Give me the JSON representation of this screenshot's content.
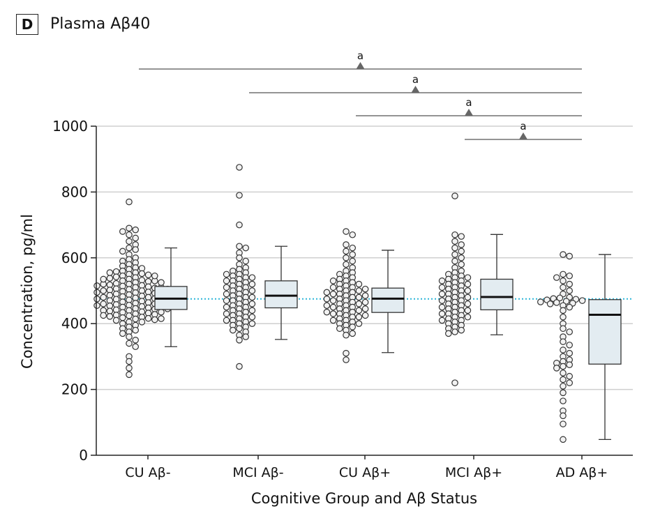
{
  "panel": {
    "label": "D",
    "title": "Plasma Aβ40"
  },
  "chart_data": {
    "type": "box",
    "xlabel": "Cognitive Group and Aβ Status",
    "ylabel": "Concentration, pg/ml",
    "ylim": [
      0,
      1000
    ],
    "yticks": [
      0,
      200,
      400,
      600,
      800,
      1000
    ],
    "grid": true,
    "reference_line": 475,
    "reference_color": "#2bb5d8",
    "box_fill": "#e3ecf1",
    "groups": [
      {
        "label": "CU Aβ-",
        "box": {
          "whisker_low": 330,
          "q1": 443,
          "median": 476,
          "q3": 513,
          "whisker_high": 630
        },
        "points": [
          770,
          690,
          685,
          680,
          670,
          660,
          650,
          640,
          630,
          625,
          620,
          610,
          600,
          595,
          590,
          585,
          580,
          575,
          570,
          568,
          565,
          560,
          558,
          555,
          552,
          550,
          548,
          545,
          542,
          540,
          538,
          535,
          532,
          530,
          528,
          525,
          522,
          520,
          518,
          516,
          514,
          512,
          510,
          508,
          506,
          504,
          502,
          500,
          498,
          496,
          494,
          492,
          490,
          488,
          486,
          484,
          482,
          480,
          478,
          476,
          474,
          472,
          470,
          468,
          466,
          464,
          462,
          460,
          458,
          456,
          454,
          452,
          450,
          448,
          446,
          444,
          442,
          440,
          438,
          436,
          434,
          432,
          430,
          428,
          426,
          424,
          422,
          420,
          418,
          416,
          414,
          412,
          410,
          405,
          400,
          395,
          390,
          385,
          380,
          375,
          370,
          360,
          350,
          340,
          330,
          300,
          285,
          265,
          245,
          480,
          470,
          460,
          490,
          500,
          510,
          520,
          530,
          440,
          450,
          455,
          465,
          475,
          485,
          495,
          505,
          515,
          525,
          535,
          545,
          555,
          445,
          435,
          425,
          415,
          405
        ]
      },
      {
        "label": "MCI Aβ-",
        "box": {
          "whisker_low": 352,
          "q1": 448,
          "median": 485,
          "q3": 530,
          "whisker_high": 635
        },
        "points": [
          875,
          790,
          700,
          635,
          630,
          615,
          600,
          590,
          580,
          570,
          565,
          560,
          555,
          550,
          545,
          540,
          535,
          530,
          525,
          520,
          515,
          510,
          505,
          500,
          495,
          490,
          485,
          480,
          475,
          470,
          465,
          460,
          455,
          450,
          445,
          440,
          435,
          430,
          425,
          420,
          415,
          410,
          405,
          400,
          395,
          390,
          385,
          380,
          375,
          365,
          360,
          350,
          270,
          500,
          490,
          480,
          470,
          460,
          450,
          510,
          520,
          530,
          540,
          550,
          440,
          430,
          420,
          410,
          400
        ]
      },
      {
        "label": "CU Aβ+",
        "box": {
          "whisker_low": 312,
          "q1": 434,
          "median": 476,
          "q3": 508,
          "whisker_high": 623
        },
        "points": [
          680,
          670,
          640,
          630,
          620,
          610,
          600,
          590,
          580,
          570,
          560,
          555,
          550,
          545,
          540,
          535,
          530,
          525,
          520,
          515,
          510,
          505,
          500,
          495,
          490,
          485,
          480,
          475,
          470,
          465,
          460,
          455,
          450,
          445,
          440,
          435,
          430,
          425,
          420,
          415,
          410,
          405,
          400,
          395,
          390,
          385,
          380,
          370,
          365,
          310,
          290,
          500,
          490,
          480,
          470,
          460,
          450,
          510,
          520,
          530,
          440,
          430,
          420,
          410,
          400,
          505,
          495,
          485,
          475,
          465,
          455,
          445,
          435,
          425
        ]
      },
      {
        "label": "MCI Aβ+",
        "box": {
          "whisker_low": 366,
          "q1": 442,
          "median": 481,
          "q3": 535,
          "whisker_high": 671
        },
        "points": [
          788,
          670,
          665,
          650,
          640,
          630,
          620,
          610,
          600,
          590,
          580,
          570,
          560,
          555,
          550,
          545,
          540,
          535,
          530,
          525,
          520,
          515,
          510,
          505,
          500,
          495,
          490,
          485,
          480,
          475,
          470,
          465,
          460,
          455,
          450,
          445,
          440,
          435,
          430,
          425,
          420,
          415,
          410,
          405,
          400,
          395,
          390,
          385,
          380,
          375,
          370,
          220,
          500,
          490,
          480,
          470,
          460,
          450,
          510,
          520,
          530,
          540,
          440,
          430,
          420,
          410
        ]
      },
      {
        "label": "AD Aβ+",
        "box": {
          "whisker_low": 48,
          "q1": 277,
          "median": 427,
          "q3": 473,
          "whisker_high": 610
        },
        "points": [
          610,
          605,
          550,
          545,
          540,
          530,
          520,
          510,
          500,
          490,
          480,
          478,
          476,
          474,
          472,
          470,
          468,
          466,
          464,
          462,
          460,
          455,
          450,
          440,
          420,
          400,
          385,
          375,
          360,
          345,
          335,
          320,
          310,
          300,
          290,
          285,
          280,
          275,
          270,
          265,
          250,
          240,
          230,
          220,
          210,
          190,
          165,
          135,
          120,
          95,
          48
        ]
      }
    ],
    "comparisons": [
      {
        "label": "a",
        "from": 0,
        "to": 4
      },
      {
        "label": "a",
        "from": 1,
        "to": 4
      },
      {
        "label": "a",
        "from": 2,
        "to": 4
      },
      {
        "label": "a",
        "from": 3,
        "to": 4
      }
    ]
  }
}
